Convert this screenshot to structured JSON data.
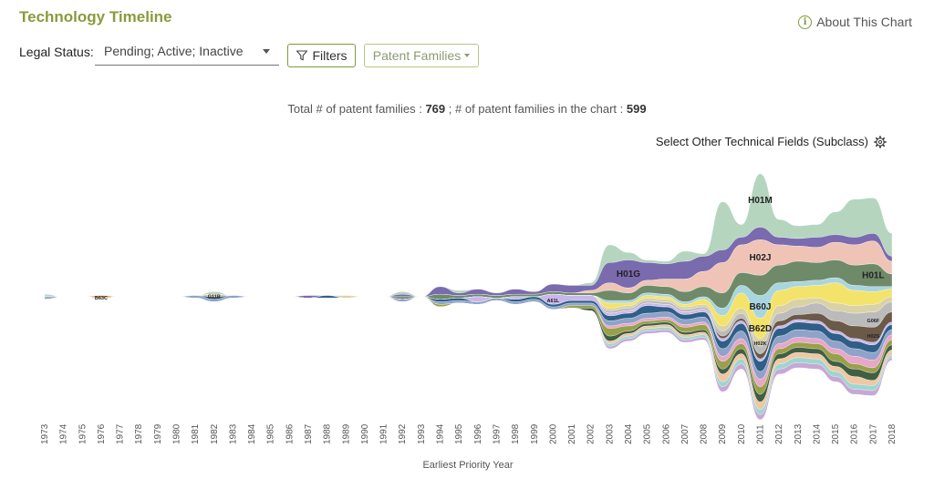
{
  "header": {
    "title": "Technology Timeline",
    "about_label": "About This Chart"
  },
  "controls": {
    "legal_status_label": "Legal Status:",
    "legal_status_value": "Pending; Active; Inactive",
    "filters_label": "Filters",
    "patent_families_label": "Patent Families"
  },
  "summary": {
    "total_label": "Total # of patent families : ",
    "total_value": "769",
    "in_chart_label": " ; # of patent families in the chart : ",
    "in_chart_value": "599"
  },
  "select_other_label": "Select Other Technical Fields (Subclass)",
  "chart_data": {
    "type": "area",
    "subtype": "streamgraph",
    "xlabel": "Earliest Priority Year",
    "ylabel": "",
    "x": [
      1973,
      1974,
      1975,
      1976,
      1977,
      1978,
      1979,
      1980,
      1981,
      1982,
      1983,
      1984,
      1985,
      1986,
      1987,
      1988,
      1989,
      1990,
      1991,
      1992,
      1993,
      1994,
      1995,
      1996,
      1997,
      1998,
      1999,
      2000,
      2001,
      2002,
      2003,
      2004,
      2005,
      2006,
      2007,
      2008,
      2009,
      2010,
      2011,
      2012,
      2013,
      2014,
      2015,
      2016,
      2017,
      2018
    ],
    "series": [
      {
        "name": "H01M",
        "color": "#b5d5bf",
        "values": [
          1,
          0,
          0,
          0,
          0,
          0,
          0,
          0,
          0,
          1,
          0,
          0,
          0,
          0,
          0,
          0,
          0,
          0,
          0,
          1,
          0,
          0,
          1,
          0,
          0,
          0,
          0,
          0,
          0,
          1,
          7,
          3,
          1,
          1,
          4,
          1,
          19,
          5,
          21,
          7,
          5,
          5,
          9,
          15,
          14,
          9
        ]
      },
      {
        "name": "H01G",
        "color": "#7a6aae",
        "values": [
          0,
          0,
          0,
          0,
          0,
          0,
          0,
          0,
          0,
          0,
          0,
          0,
          0,
          0,
          1,
          0,
          0,
          0,
          0,
          1,
          0,
          3,
          1,
          2,
          1,
          2,
          1,
          3,
          3,
          2,
          8,
          11,
          7,
          6,
          7,
          6,
          5,
          3,
          5,
          3,
          3,
          4,
          3,
          3,
          3,
          2
        ]
      },
      {
        "name": "H02J",
        "color": "#efc4b6",
        "values": [
          0,
          0,
          0,
          0,
          0,
          0,
          0,
          0,
          0,
          0,
          0,
          0,
          0,
          0,
          0,
          0,
          0,
          0,
          0,
          0,
          0,
          0,
          0,
          0,
          0,
          0,
          0,
          0,
          0,
          1,
          3,
          2,
          2,
          3,
          5,
          6,
          12,
          11,
          14,
          8,
          6,
          6,
          7,
          8,
          9,
          5
        ]
      },
      {
        "name": "H01L",
        "color": "#6e8a68",
        "values": [
          0,
          0,
          0,
          0,
          0,
          0,
          0,
          0,
          0,
          0,
          0,
          0,
          0,
          0,
          0,
          0,
          0,
          0,
          0,
          1,
          0,
          2,
          1,
          1,
          1,
          1,
          1,
          1,
          1,
          1,
          4,
          3,
          3,
          3,
          4,
          4,
          6,
          5,
          8,
          7,
          8,
          7,
          7,
          8,
          9,
          5
        ]
      },
      {
        "name": "B60J",
        "color": "#a9d5df",
        "values": [
          0,
          0,
          0,
          0,
          0,
          0,
          0,
          0,
          0,
          0,
          0,
          0,
          0,
          0,
          0,
          0,
          0,
          0,
          0,
          0,
          0,
          0,
          0,
          0,
          0,
          0,
          0,
          0,
          0,
          0,
          1,
          1,
          1,
          1,
          1,
          1,
          3,
          3,
          9,
          3,
          2,
          2,
          2,
          2,
          2,
          1
        ]
      },
      {
        "name": "B62D",
        "color": "#f3e36a",
        "values": [
          0,
          0,
          0,
          0,
          0,
          0,
          0,
          0,
          0,
          0,
          0,
          0,
          0,
          0,
          0,
          0,
          0,
          0,
          0,
          0,
          0,
          0,
          0,
          0,
          0,
          0,
          0,
          0,
          0,
          0,
          2,
          1,
          1,
          1,
          1,
          2,
          4,
          6,
          8,
          6,
          5,
          5,
          8,
          6,
          5,
          3
        ]
      },
      {
        "name": "H02K",
        "color": "#d9d2a6",
        "values": [
          0,
          0,
          0,
          0,
          0,
          0,
          0,
          0,
          0,
          0,
          0,
          0,
          0,
          0,
          0,
          0,
          1,
          0,
          0,
          0,
          0,
          0,
          0,
          0,
          0,
          0,
          0,
          0,
          0,
          0,
          1,
          1,
          1,
          1,
          1,
          1,
          2,
          2,
          3,
          3,
          3,
          2,
          3,
          3,
          3,
          2
        ]
      },
      {
        "name": "G06F",
        "color": "#bbbbbb",
        "values": [
          0,
          0,
          0,
          0,
          0,
          0,
          0,
          0,
          0,
          0,
          0,
          0,
          0,
          0,
          0,
          0,
          0,
          0,
          0,
          0,
          0,
          0,
          0,
          0,
          0,
          0,
          0,
          0,
          0,
          0,
          1,
          1,
          1,
          1,
          1,
          1,
          2,
          2,
          3,
          3,
          3,
          4,
          4,
          5,
          6,
          4
        ]
      },
      {
        "name": "H02S",
        "color": "#6b5a48",
        "values": [
          0,
          0,
          0,
          0,
          0,
          0,
          0,
          0,
          0,
          0,
          0,
          0,
          0,
          0,
          0,
          0,
          0,
          0,
          0,
          0,
          0,
          0,
          0,
          0,
          0,
          0,
          0,
          0,
          0,
          0,
          0,
          0,
          0,
          0,
          0,
          0,
          1,
          1,
          2,
          2,
          2,
          3,
          4,
          5,
          6,
          4
        ]
      },
      {
        "name": "A61L",
        "color": "#c9b6ea",
        "values": [
          0,
          0,
          0,
          0,
          0,
          0,
          0,
          0,
          0,
          0,
          0,
          0,
          0,
          0,
          0,
          0,
          0,
          0,
          0,
          0,
          0,
          0,
          0,
          2,
          0,
          1,
          0,
          4,
          2,
          2,
          1,
          1,
          1,
          1,
          1,
          1,
          1,
          1,
          1,
          1,
          1,
          1,
          1,
          1,
          1,
          1
        ]
      },
      {
        "name": "B63C",
        "color": "#d6a35e",
        "values": [
          0,
          0,
          0,
          1,
          0,
          0,
          0,
          0,
          0,
          0,
          0,
          0,
          0,
          0,
          0,
          0,
          0,
          0,
          0,
          0,
          0,
          0,
          0,
          0,
          0,
          0,
          0,
          0,
          0,
          0,
          0,
          0,
          0,
          0,
          0,
          0,
          0,
          0,
          0,
          0,
          0,
          0,
          0,
          0,
          0,
          0
        ]
      },
      {
        "name": "G11B",
        "color": "#e3c9a8",
        "values": [
          0,
          0,
          0,
          0,
          0,
          0,
          0,
          0,
          0,
          1,
          0,
          0,
          0,
          0,
          0,
          0,
          0,
          0,
          0,
          0,
          0,
          0,
          0,
          0,
          0,
          0,
          0,
          0,
          0,
          0,
          0,
          0,
          0,
          0,
          0,
          0,
          0,
          0,
          0,
          0,
          0,
          0,
          0,
          0,
          0,
          0
        ]
      },
      {
        "name": "",
        "color": "#2f5f88",
        "values": [
          0,
          0,
          0,
          0,
          0,
          0,
          0,
          0,
          0,
          1,
          0,
          0,
          0,
          0,
          0,
          1,
          0,
          0,
          0,
          0,
          0,
          1,
          1,
          0,
          0,
          1,
          1,
          1,
          1,
          1,
          2,
          2,
          3,
          2,
          2,
          2,
          3,
          3,
          4,
          3,
          3,
          3,
          3,
          3,
          3,
          2
        ]
      },
      {
        "name": "",
        "color": "#8fa3c8",
        "values": [
          1,
          0,
          0,
          0,
          0,
          0,
          0,
          0,
          1,
          1,
          1,
          0,
          0,
          0,
          0,
          0,
          0,
          0,
          0,
          1,
          0,
          1,
          1,
          1,
          1,
          1,
          1,
          1,
          1,
          1,
          2,
          2,
          2,
          2,
          2,
          2,
          3,
          3,
          3,
          3,
          3,
          3,
          3,
          3,
          3,
          2
        ]
      },
      {
        "name": "",
        "color": "#e8a6c8",
        "values": [
          0,
          0,
          0,
          0,
          0,
          0,
          0,
          0,
          0,
          0,
          0,
          0,
          0,
          0,
          0,
          0,
          0,
          0,
          0,
          0,
          0,
          0,
          0,
          0,
          0,
          0,
          0,
          0,
          0,
          0,
          1,
          1,
          1,
          1,
          1,
          1,
          2,
          2,
          3,
          2,
          2,
          2,
          2,
          3,
          3,
          2
        ]
      },
      {
        "name": "",
        "color": "#9aa04a",
        "values": [
          0,
          0,
          0,
          0,
          0,
          0,
          0,
          0,
          0,
          0,
          0,
          0,
          0,
          0,
          0,
          0,
          0,
          0,
          0,
          0,
          0,
          1,
          0,
          0,
          0,
          0,
          0,
          0,
          1,
          1,
          3,
          2,
          1,
          1,
          2,
          2,
          3,
          2,
          3,
          2,
          2,
          2,
          3,
          2,
          2,
          2
        ]
      },
      {
        "name": "",
        "color": "#3f5f44",
        "values": [
          0,
          0,
          0,
          0,
          0,
          0,
          0,
          0,
          0,
          0,
          0,
          0,
          0,
          0,
          0,
          0,
          0,
          0,
          0,
          0,
          0,
          0,
          0,
          0,
          0,
          0,
          0,
          0,
          0,
          1,
          2,
          1,
          1,
          1,
          1,
          1,
          2,
          2,
          3,
          2,
          2,
          2,
          2,
          3,
          3,
          2
        ]
      },
      {
        "name": "",
        "color": "#efc7a2",
        "values": [
          0,
          0,
          0,
          0,
          0,
          0,
          0,
          0,
          0,
          0,
          0,
          0,
          0,
          0,
          0,
          0,
          0,
          0,
          0,
          0,
          0,
          0,
          0,
          0,
          0,
          0,
          0,
          0,
          0,
          0,
          1,
          1,
          1,
          1,
          1,
          1,
          3,
          2,
          3,
          2,
          2,
          2,
          2,
          3,
          2,
          2
        ]
      },
      {
        "name": "",
        "color": "#9ed6cf",
        "values": [
          0,
          0,
          0,
          0,
          0,
          0,
          0,
          0,
          0,
          0,
          0,
          0,
          0,
          0,
          0,
          0,
          0,
          0,
          0,
          0,
          0,
          0,
          0,
          0,
          0,
          0,
          0,
          0,
          0,
          0,
          1,
          1,
          1,
          1,
          1,
          1,
          2,
          2,
          2,
          2,
          2,
          2,
          2,
          2,
          2,
          1
        ]
      },
      {
        "name": "",
        "color": "#c7a7d6",
        "values": [
          0,
          0,
          0,
          0,
          0,
          0,
          0,
          0,
          0,
          0,
          0,
          0,
          0,
          0,
          0,
          0,
          0,
          0,
          0,
          0,
          0,
          0,
          0,
          0,
          0,
          0,
          0,
          0,
          0,
          0,
          1,
          1,
          1,
          1,
          1,
          1,
          2,
          2,
          2,
          2,
          2,
          2,
          2,
          2,
          2,
          1
        ]
      }
    ]
  }
}
